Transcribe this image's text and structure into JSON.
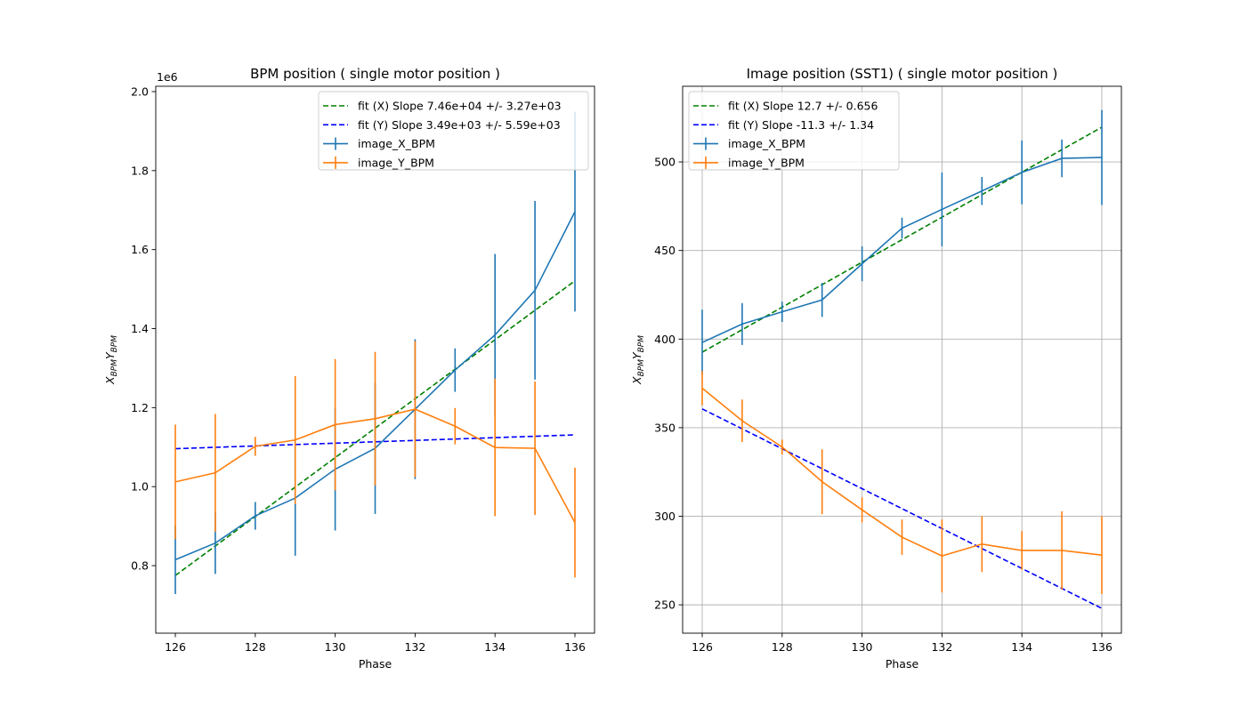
{
  "chart_data": [
    {
      "type": "line",
      "title": "BPM position ( single motor  position )",
      "xlabel": "Phase",
      "ylabel": {
        "main1": "X",
        "sub1": "BPM",
        "main2": "Y",
        "sub2": "BPM"
      },
      "offset_text": "1e6",
      "xlim": [
        125.51,
        136.49
      ],
      "ylim": [
        0.629,
        2.0135
      ],
      "xticks": [
        126,
        128,
        130,
        132,
        134,
        136
      ],
      "yticks": [
        0.8,
        1.0,
        1.2,
        1.4,
        1.6,
        1.8,
        2.0
      ],
      "ytick_labels": [
        "0.8",
        "1.0",
        "1.2",
        "1.4",
        "1.6",
        "1.8",
        "2.0"
      ],
      "grid": false,
      "legend_placement": "top-right",
      "x": [
        126,
        127,
        128,
        129,
        130,
        131,
        132,
        133,
        134,
        135,
        136
      ],
      "series": [
        {
          "name": "image_X_BPM",
          "kind": "errorbar",
          "color": "#1f77b4",
          "values": [
            0.815,
            0.857,
            0.926,
            0.971,
            1.044,
            1.097,
            1.196,
            1.295,
            1.384,
            1.497,
            1.696
          ],
          "errors": [
            0.087,
            0.078,
            0.035,
            0.146,
            0.155,
            0.166,
            0.177,
            0.055,
            0.205,
            0.226,
            0.253
          ]
        },
        {
          "name": "image_Y_BPM",
          "kind": "errorbar",
          "color": "#ff7f0e",
          "values": [
            1.012,
            1.035,
            1.102,
            1.118,
            1.157,
            1.172,
            1.196,
            1.153,
            1.099,
            1.097,
            0.909
          ],
          "errors": [
            0.145,
            0.149,
            0.024,
            0.162,
            0.166,
            0.169,
            0.172,
            0.046,
            0.174,
            0.169,
            0.139
          ]
        }
      ],
      "fits": [
        {
          "name": "fit (X) Slope 7.46e+04 +/- 3.27e+03",
          "color": "#008000",
          "x": [
            126,
            136
          ],
          "values": [
            0.775,
            1.521
          ]
        },
        {
          "name": "fit (Y) Slope 3.49e+03 +/- 5.59e+03",
          "color": "#0000ff",
          "x": [
            126,
            136
          ],
          "values": [
            1.096,
            1.131
          ]
        }
      ]
    },
    {
      "type": "line",
      "title": "Image position (SST1) ( single motor  position )",
      "xlabel": "Phase",
      "ylabel": {
        "main1": "X",
        "sub1": "BPM",
        "main2": "Y",
        "sub2": "BPM"
      },
      "xlim": [
        125.51,
        136.49
      ],
      "ylim": [
        234,
        542.7
      ],
      "xticks": [
        126,
        128,
        130,
        132,
        134,
        136
      ],
      "yticks": [
        250,
        300,
        350,
        400,
        450,
        500
      ],
      "ytick_labels": [
        "250",
        "300",
        "350",
        "400",
        "450",
        "500"
      ],
      "grid": true,
      "legend_placement": "top-left",
      "x": [
        126,
        127,
        128,
        129,
        130,
        131,
        132,
        133,
        134,
        135,
        136
      ],
      "series": [
        {
          "name": "image_X_BPM",
          "kind": "errorbar",
          "color": "#1f77b4",
          "values": [
            398.1,
            408.5,
            415.4,
            422.1,
            442.5,
            462.6,
            473.2,
            483.6,
            494.1,
            502.0,
            502.5
          ],
          "errors": [
            18.5,
            11.8,
            5.7,
            9.6,
            9.8,
            5.9,
            20.8,
            7.9,
            18.0,
            10.6,
            26.8
          ]
        },
        {
          "name": "image_Y_BPM",
          "kind": "errorbar",
          "color": "#ff7f0e",
          "values": [
            372.3,
            353.9,
            339.1,
            319.5,
            303.6,
            288.2,
            277.6,
            284.3,
            280.7,
            280.7,
            278.1
          ],
          "errors": [
            9.7,
            12.0,
            4.2,
            18.3,
            7.0,
            10.0,
            20.6,
            15.8,
            10.9,
            22.1,
            22.0
          ]
        }
      ],
      "fits": [
        {
          "name": "fit (X) Slope 12.7 +/- 0.656",
          "color": "#008000",
          "x": [
            126,
            136
          ],
          "values": [
            392.6,
            519.6
          ]
        },
        {
          "name": "fit (Y) Slope -11.3 +/- 1.34",
          "color": "#0000ff",
          "x": [
            126,
            136
          ],
          "values": [
            360.6,
            248.0
          ]
        }
      ]
    }
  ]
}
